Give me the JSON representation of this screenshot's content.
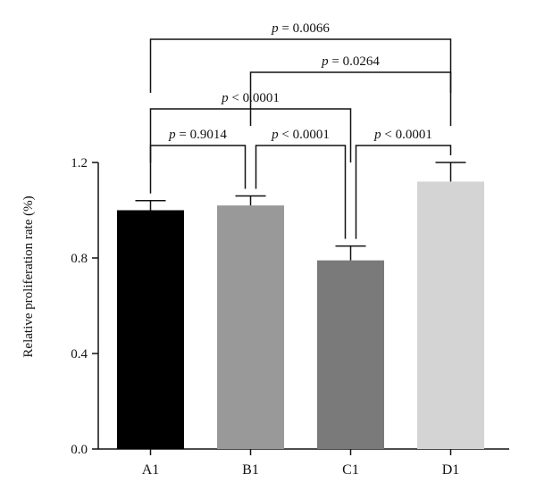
{
  "chart_data": {
    "type": "bar",
    "ylabel": "Relative proliferation rate (%)",
    "xlabel": "",
    "ylim": [
      0.0,
      1.2
    ],
    "yticks": [
      "0.0",
      "0.4",
      "0.8",
      "1.2"
    ],
    "yticks_values": [
      0.0,
      0.4,
      0.8,
      1.2
    ],
    "categories": [
      "A1",
      "B1",
      "C1",
      "D1"
    ],
    "values": [
      1.0,
      1.02,
      0.79,
      1.12
    ],
    "errors": [
      0.04,
      0.04,
      0.06,
      0.08
    ],
    "colors": [
      "#000000",
      "#999999",
      "#7a7a7a",
      "#d4d4d4"
    ],
    "grid": false,
    "comparisons": [
      {
        "from": "A1",
        "to": "B1",
        "p_symbol": "p",
        "op": "=",
        "value": "0.9014"
      },
      {
        "from": "B1",
        "to": "C1",
        "p_symbol": "p",
        "op": "<",
        "value": "0.0001"
      },
      {
        "from": "C1",
        "to": "D1",
        "p_symbol": "p",
        "op": "<",
        "value": "0.0001"
      },
      {
        "from": "A1",
        "to": "C1",
        "p_symbol": "p",
        "op": "<",
        "value": "0.0001"
      },
      {
        "from": "B1",
        "to": "D1",
        "p_symbol": "p",
        "op": "=",
        "value": "0.0264"
      },
      {
        "from": "A1",
        "to": "D1",
        "p_symbol": "p",
        "op": "=",
        "value": "0.0066"
      }
    ]
  }
}
